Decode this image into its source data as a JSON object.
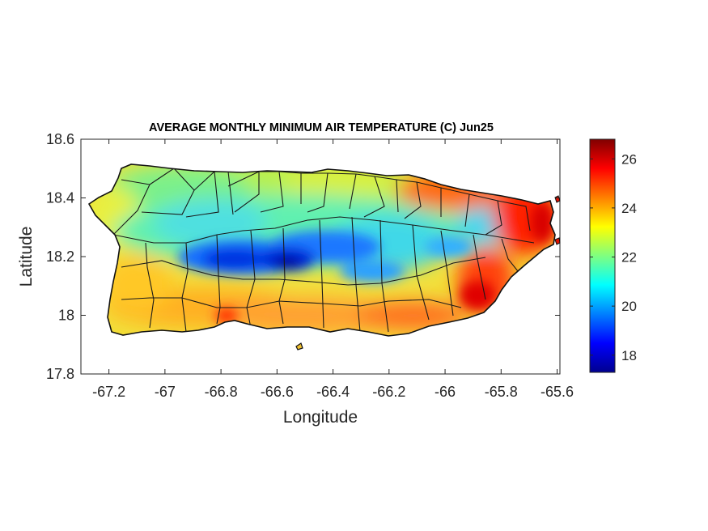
{
  "chart_data": {
    "type": "heatmap",
    "title": "AVERAGE MONTHLY MINIMUM AIR TEMPERATURE (C) Jun25",
    "xlabel": "Longitude",
    "ylabel": "Latitude",
    "xlim": [
      -67.3,
      -65.59
    ],
    "ylim": [
      17.8,
      18.6
    ],
    "xticks": [
      -67.2,
      -67,
      -66.8,
      -66.6,
      -66.4,
      -66.2,
      -66,
      -65.8,
      -65.6
    ],
    "xtick_labels": [
      "-67.2",
      "-67",
      "-66.8",
      "-66.6",
      "-66.4",
      "-66.2",
      "-66",
      "-65.8",
      "-65.6"
    ],
    "yticks": [
      17.8,
      18,
      18.2,
      18.4,
      18.6
    ],
    "ytick_labels": [
      "17.8",
      "18",
      "18.2",
      "18.4",
      "18.6"
    ],
    "colorbar": {
      "range": [
        17.3,
        26.8
      ],
      "ticks": [
        18,
        20,
        22,
        24,
        26
      ],
      "tick_labels": [
        "18",
        "20",
        "22",
        "24",
        "26"
      ],
      "colormap": "jet"
    },
    "grid": false,
    "region": "Puerto Rico",
    "features": {
      "cool_central_mountains": "approximately 17-20 C",
      "warm_southern_coast": "approximately 24-25 C",
      "warm_eastern_coast": "approximately 25-26.5 C",
      "northern_coast": "approximately 22-24 C"
    }
  }
}
